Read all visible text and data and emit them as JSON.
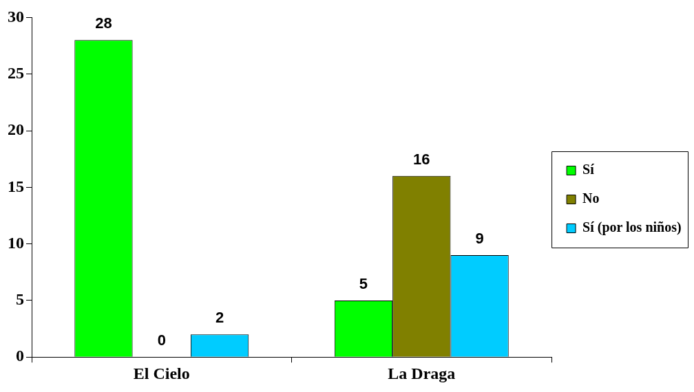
{
  "chart_data": {
    "type": "bar",
    "categories": [
      "El Cielo",
      "La Draga"
    ],
    "series": [
      {
        "name": "Sí",
        "color": "#00ff00",
        "values": [
          28,
          5
        ]
      },
      {
        "name": "No",
        "color": "#808000",
        "values": [
          0,
          16
        ]
      },
      {
        "name": "Sí (por los niños)",
        "color": "#00ccff",
        "values": [
          2,
          9
        ]
      }
    ],
    "ylim": [
      0,
      30
    ],
    "yticks": [
      0,
      5,
      10,
      15,
      20,
      25,
      30
    ],
    "legend": "right",
    "data_labels": true
  }
}
